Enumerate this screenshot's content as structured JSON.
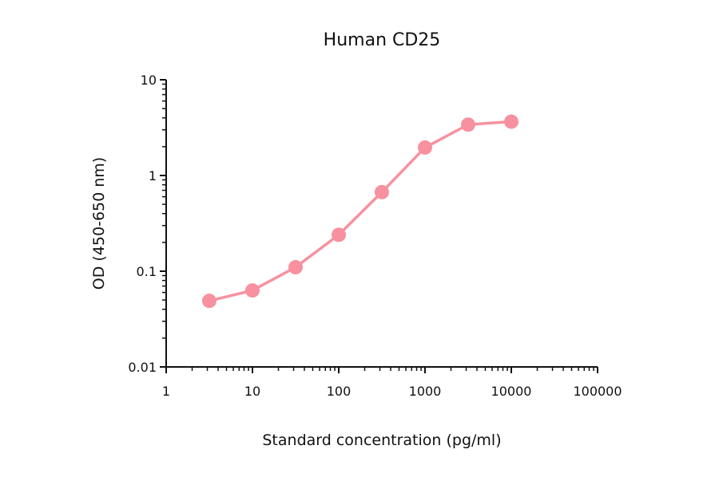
{
  "chart_data": {
    "type": "line",
    "title": "Human CD25",
    "xlabel": "Standard concentration (pg/ml)",
    "ylabel": "OD (450-650 nm)",
    "x_scale": "log",
    "y_scale": "log",
    "xlim": [
      1,
      100000
    ],
    "ylim": [
      0.01,
      10
    ],
    "x_ticks": [
      1,
      10,
      100,
      1000,
      10000,
      100000
    ],
    "x_tick_labels": [
      "1",
      "10",
      "100",
      "1000",
      "10000",
      "100000"
    ],
    "y_ticks": [
      0.01,
      0.1,
      1,
      10
    ],
    "y_tick_labels": [
      "0.01",
      "0.1",
      "1",
      "10"
    ],
    "grid": false,
    "series": [
      {
        "color": "#f7919f",
        "x": [
          3.16,
          10,
          31.6,
          100,
          316,
          1000,
          3162,
          10000
        ],
        "y": [
          0.049,
          0.063,
          0.11,
          0.24,
          0.67,
          1.96,
          3.4,
          3.65
        ]
      }
    ]
  }
}
